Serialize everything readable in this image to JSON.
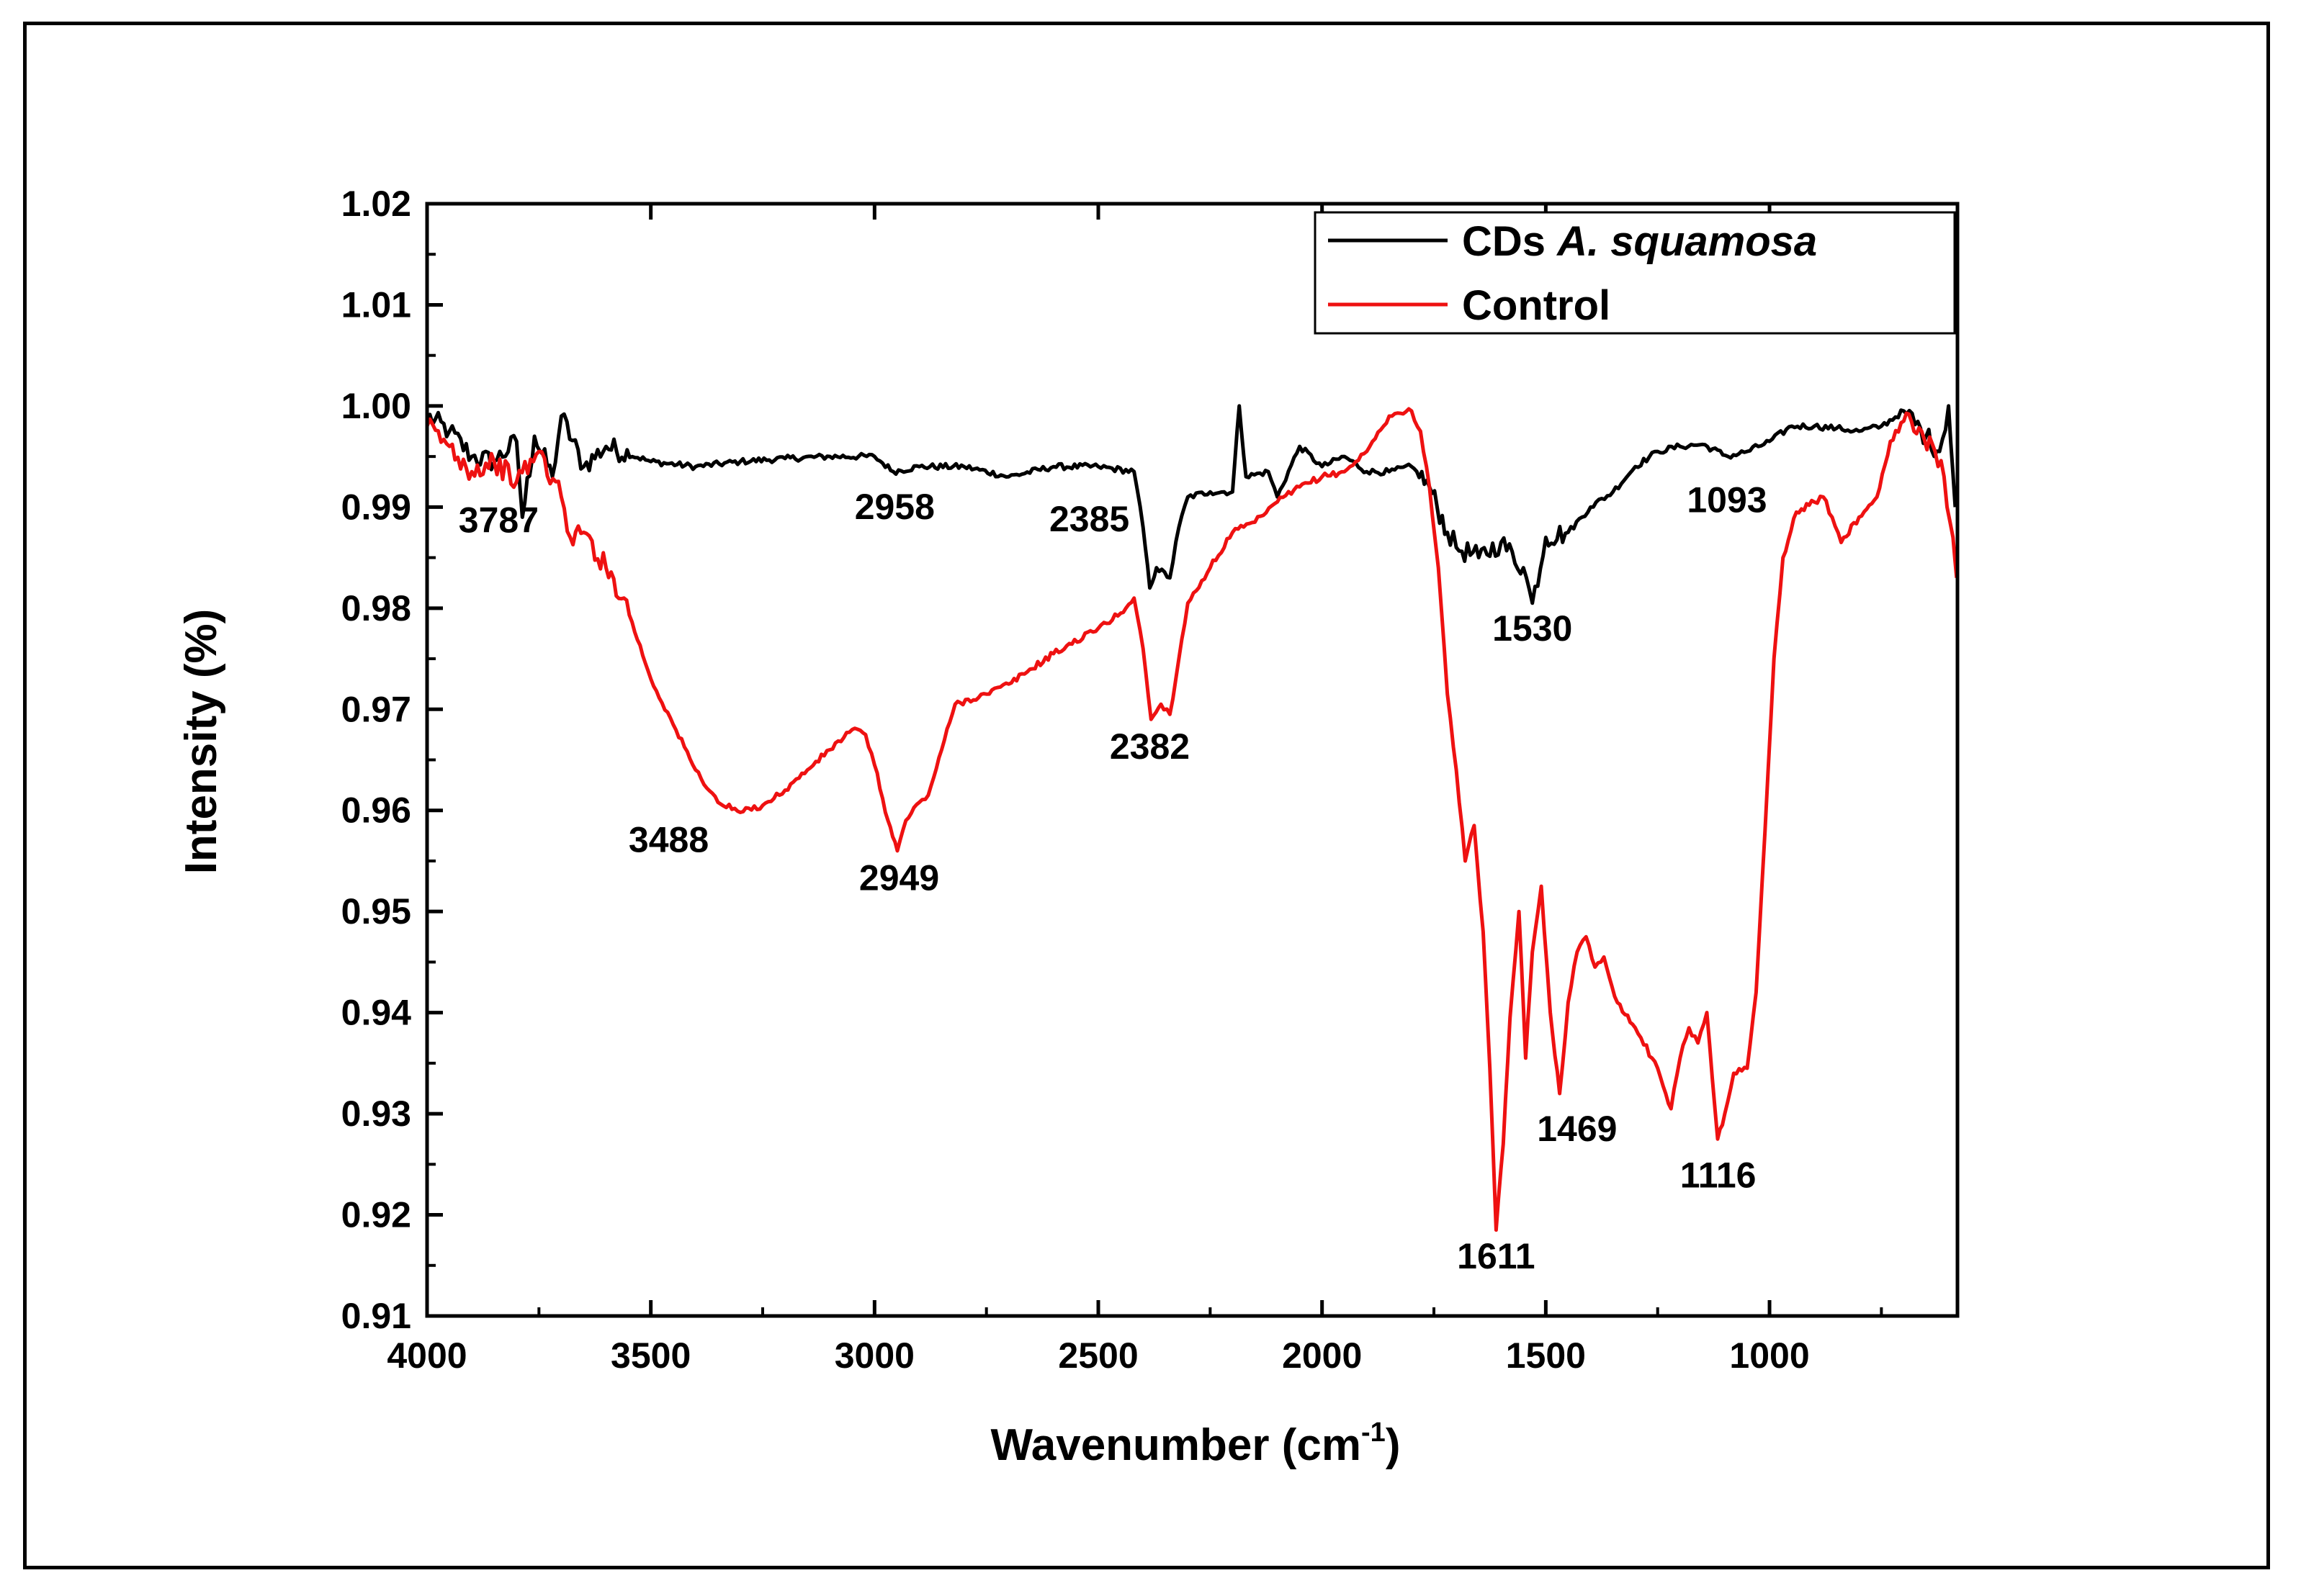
{
  "chart_data": {
    "type": "line",
    "title": "",
    "xlabel": "Wavenumber (cm",
    "xlabel_sup": "-1",
    "xlabel_close": ")",
    "ylabel": "Intensity (%)",
    "xlim": [
      4000,
      580
    ],
    "ylim": [
      0.91,
      1.02
    ],
    "x_ticks": [
      4000,
      3500,
      3000,
      2500,
      2000,
      1500,
      1000
    ],
    "y_ticks": [
      0.91,
      0.92,
      0.93,
      0.94,
      0.95,
      0.96,
      0.97,
      0.98,
      0.99,
      1.0,
      1.01,
      1.02
    ],
    "y_tick_labels": [
      "0.91",
      "0.92",
      "0.93",
      "0.94",
      "0.95",
      "0.96",
      "0.97",
      "0.98",
      "0.99",
      "1.00",
      "1.01",
      "1.02"
    ],
    "legend_position": "top-right",
    "series": [
      {
        "name": "CDs",
        "name_italic": "A. squamosa",
        "color": "#000000",
        "points": [
          [
            4000,
            0.999
          ],
          [
            3950,
            0.9975
          ],
          [
            3900,
            0.995
          ],
          [
            3850,
            0.9945
          ],
          [
            3800,
            0.9965
          ],
          [
            3787,
            0.989
          ],
          [
            3760,
            0.997
          ],
          [
            3720,
            0.993
          ],
          [
            3700,
            0.999
          ],
          [
            3650,
            0.994
          ],
          [
            3600,
            0.996
          ],
          [
            3500,
            0.9945
          ],
          [
            3400,
            0.994
          ],
          [
            3300,
            0.9945
          ],
          [
            3200,
            0.9948
          ],
          [
            3100,
            0.995
          ],
          [
            3000,
            0.995
          ],
          [
            2958,
            0.9935
          ],
          [
            2900,
            0.994
          ],
          [
            2800,
            0.994
          ],
          [
            2700,
            0.993
          ],
          [
            2600,
            0.994
          ],
          [
            2500,
            0.994
          ],
          [
            2420,
            0.9935
          ],
          [
            2400,
            0.988
          ],
          [
            2385,
            0.982
          ],
          [
            2370,
            0.984
          ],
          [
            2340,
            0.983
          ],
          [
            2320,
            0.988
          ],
          [
            2300,
            0.991
          ],
          [
            2250,
            0.9915
          ],
          [
            2200,
            0.9915
          ],
          [
            2185,
            1.0
          ],
          [
            2170,
            0.993
          ],
          [
            2120,
            0.9935
          ],
          [
            2100,
            0.991
          ],
          [
            2050,
            0.996
          ],
          [
            2000,
            0.994
          ],
          [
            1950,
            0.995
          ],
          [
            1900,
            0.9935
          ],
          [
            1850,
            0.9935
          ],
          [
            1800,
            0.994
          ],
          [
            1760,
            0.992
          ],
          [
            1720,
            0.9875
          ],
          [
            1700,
            0.986
          ],
          [
            1650,
            0.985
          ],
          [
            1600,
            0.9865
          ],
          [
            1550,
            0.984
          ],
          [
            1530,
            0.9805
          ],
          [
            1500,
            0.987
          ],
          [
            1450,
            0.9875
          ],
          [
            1400,
            0.99
          ],
          [
            1350,
            0.9915
          ],
          [
            1300,
            0.994
          ],
          [
            1250,
            0.9955
          ],
          [
            1200,
            0.996
          ],
          [
            1150,
            0.9962
          ],
          [
            1093,
            0.995
          ],
          [
            1050,
            0.9955
          ],
          [
            1000,
            0.9965
          ],
          [
            950,
            0.998
          ],
          [
            900,
            0.998
          ],
          [
            850,
            0.9978
          ],
          [
            800,
            0.9975
          ],
          [
            750,
            0.998
          ],
          [
            700,
            0.9995
          ],
          [
            650,
            0.997
          ],
          [
            620,
            0.9955
          ],
          [
            600,
            1.0
          ],
          [
            585,
            0.99
          ]
        ]
      },
      {
        "name": "Control",
        "color": "#ee1111",
        "points": [
          [
            4000,
            0.998
          ],
          [
            3950,
            0.996
          ],
          [
            3900,
            0.9935
          ],
          [
            3850,
            0.9945
          ],
          [
            3800,
            0.9925
          ],
          [
            3750,
            0.9955
          ],
          [
            3700,
            0.991
          ],
          [
            3680,
            0.987
          ],
          [
            3650,
            0.9875
          ],
          [
            3600,
            0.984
          ],
          [
            3560,
            0.981
          ],
          [
            3500,
            0.973
          ],
          [
            3450,
            0.9685
          ],
          [
            3400,
            0.964
          ],
          [
            3350,
            0.9608
          ],
          [
            3300,
            0.9598
          ],
          [
            3250,
            0.9605
          ],
          [
            3200,
            0.962
          ],
          [
            3150,
            0.964
          ],
          [
            3100,
            0.966
          ],
          [
            3050,
            0.968
          ],
          [
            3020,
            0.9675
          ],
          [
            3000,
            0.9645
          ],
          [
            2970,
            0.959
          ],
          [
            2949,
            0.956
          ],
          [
            2930,
            0.959
          ],
          [
            2900,
            0.9608
          ],
          [
            2880,
            0.9615
          ],
          [
            2850,
            0.966
          ],
          [
            2820,
            0.9705
          ],
          [
            2750,
            0.9715
          ],
          [
            2700,
            0.9725
          ],
          [
            2600,
            0.9755
          ],
          [
            2500,
            0.978
          ],
          [
            2450,
            0.9795
          ],
          [
            2420,
            0.981
          ],
          [
            2400,
            0.976
          ],
          [
            2382,
            0.969
          ],
          [
            2360,
            0.9705
          ],
          [
            2340,
            0.9695
          ],
          [
            2320,
            0.975
          ],
          [
            2300,
            0.9805
          ],
          [
            2250,
            0.984
          ],
          [
            2200,
            0.9875
          ],
          [
            2150,
            0.9885
          ],
          [
            2100,
            0.9905
          ],
          [
            2050,
            0.992
          ],
          [
            2000,
            0.993
          ],
          [
            1950,
            0.9935
          ],
          [
            1900,
            0.9955
          ],
          [
            1850,
            0.999
          ],
          [
            1800,
            0.9995
          ],
          [
            1780,
            0.9975
          ],
          [
            1760,
            0.992
          ],
          [
            1740,
            0.984
          ],
          [
            1720,
            0.9715
          ],
          [
            1700,
            0.964
          ],
          [
            1680,
            0.955
          ],
          [
            1660,
            0.9585
          ],
          [
            1640,
            0.948
          ],
          [
            1625,
            0.9345
          ],
          [
            1611,
            0.9185
          ],
          [
            1595,
            0.927
          ],
          [
            1580,
            0.9395
          ],
          [
            1560,
            0.95
          ],
          [
            1545,
            0.9355
          ],
          [
            1530,
            0.946
          ],
          [
            1510,
            0.9525
          ],
          [
            1490,
            0.94
          ],
          [
            1469,
            0.932
          ],
          [
            1450,
            0.941
          ],
          [
            1430,
            0.946
          ],
          [
            1410,
            0.9475
          ],
          [
            1390,
            0.9445
          ],
          [
            1370,
            0.9455
          ],
          [
            1340,
            0.941
          ],
          [
            1300,
            0.9385
          ],
          [
            1250,
            0.9345
          ],
          [
            1220,
            0.9305
          ],
          [
            1200,
            0.9355
          ],
          [
            1180,
            0.9385
          ],
          [
            1160,
            0.937
          ],
          [
            1140,
            0.94
          ],
          [
            1116,
            0.9275
          ],
          [
            1100,
            0.93
          ],
          [
            1080,
            0.934
          ],
          [
            1050,
            0.9345
          ],
          [
            1030,
            0.942
          ],
          [
            1010,
            0.958
          ],
          [
            990,
            0.975
          ],
          [
            970,
            0.985
          ],
          [
            940,
            0.9895
          ],
          [
            900,
            0.9905
          ],
          [
            880,
            0.991
          ],
          [
            860,
            0.989
          ],
          [
            840,
            0.9865
          ],
          [
            800,
            0.989
          ],
          [
            760,
            0.991
          ],
          [
            730,
            0.9965
          ],
          [
            700,
            0.9985
          ],
          [
            660,
            0.9975
          ],
          [
            630,
            0.9955
          ],
          [
            610,
            0.993
          ],
          [
            590,
            0.987
          ],
          [
            582,
            0.983
          ]
        ]
      }
    ],
    "annotations": [
      {
        "text": "3787",
        "x": 3840,
        "y": 0.9875
      },
      {
        "text": "2958",
        "x": 2955,
        "y": 0.9888
      },
      {
        "text": "2385",
        "x": 2520,
        "y": 0.9876
      },
      {
        "text": "1530",
        "x": 1530,
        "y": 0.9768
      },
      {
        "text": "1093",
        "x": 1095,
        "y": 0.9895
      },
      {
        "text": "3488",
        "x": 3460,
        "y": 0.9559
      },
      {
        "text": "2949",
        "x": 2945,
        "y": 0.9521
      },
      {
        "text": "2382",
        "x": 2385,
        "y": 0.9651
      },
      {
        "text": "1469",
        "x": 1430,
        "y": 0.9273
      },
      {
        "text": "1116",
        "x": 1115,
        "y": 0.9227
      },
      {
        "text": "1611",
        "x": 1611,
        "y": 0.9147
      }
    ]
  }
}
